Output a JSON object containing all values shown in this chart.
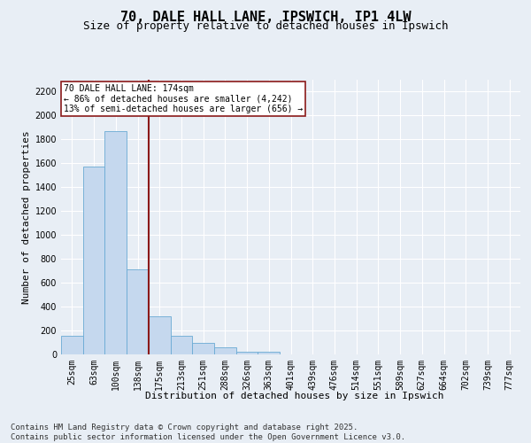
{
  "title": "70, DALE HALL LANE, IPSWICH, IP1 4LW",
  "subtitle": "Size of property relative to detached houses in Ipswich",
  "xlabel": "Distribution of detached houses by size in Ipswich",
  "ylabel": "Number of detached properties",
  "categories": [
    "25sqm",
    "63sqm",
    "100sqm",
    "138sqm",
    "175sqm",
    "213sqm",
    "251sqm",
    "288sqm",
    "326sqm",
    "363sqm",
    "401sqm",
    "439sqm",
    "476sqm",
    "514sqm",
    "551sqm",
    "589sqm",
    "627sqm",
    "664sqm",
    "702sqm",
    "739sqm",
    "777sqm"
  ],
  "values": [
    155,
    1575,
    1870,
    710,
    320,
    155,
    95,
    60,
    25,
    20,
    0,
    0,
    0,
    0,
    0,
    0,
    0,
    0,
    0,
    0,
    0
  ],
  "bar_color": "#c5d8ee",
  "bar_edge_color": "#6aaad4",
  "vline_color": "#8b1a1a",
  "annotation_text": "70 DALE HALL LANE: 174sqm\n← 86% of detached houses are smaller (4,242)\n13% of semi-detached houses are larger (656) →",
  "annotation_box_color": "#ffffff",
  "annotation_box_edge": "#8b1a1a",
  "ylim": [
    0,
    2300
  ],
  "yticks": [
    0,
    200,
    400,
    600,
    800,
    1000,
    1200,
    1400,
    1600,
    1800,
    2000,
    2200
  ],
  "bg_color": "#e8eef5",
  "grid_color": "#ffffff",
  "footer_text": "Contains HM Land Registry data © Crown copyright and database right 2025.\nContains public sector information licensed under the Open Government Licence v3.0.",
  "title_fontsize": 11,
  "subtitle_fontsize": 9,
  "axis_label_fontsize": 8,
  "tick_fontsize": 7,
  "footer_fontsize": 6.5
}
